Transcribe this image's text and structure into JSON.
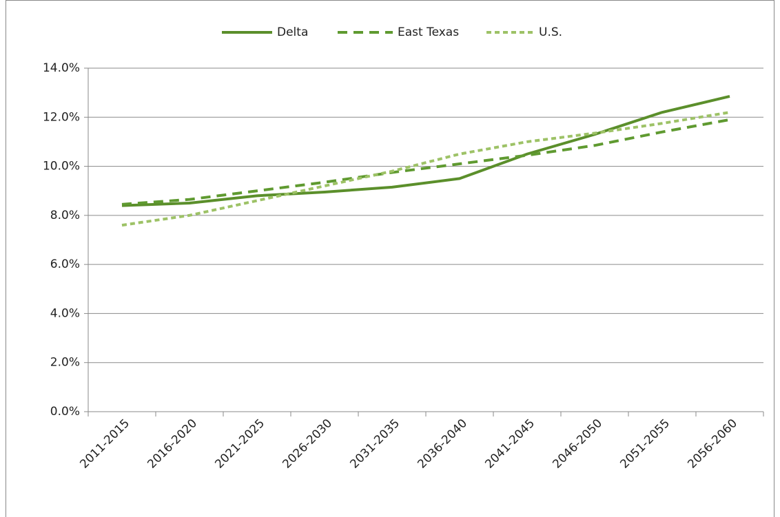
{
  "chart_data": {
    "type": "line",
    "categories": [
      "2011-2015",
      "2016-2020",
      "2021-2025",
      "2026-2030",
      "2031-2035",
      "2036-2040",
      "2041-2045",
      "2046-2050",
      "2051-2055",
      "2056-2060"
    ],
    "series": [
      {
        "name": "Delta",
        "color": "#5b8f2b",
        "dash": "solid",
        "values": [
          8.4,
          8.5,
          8.8,
          8.95,
          9.15,
          9.5,
          10.5,
          11.3,
          12.2,
          12.85
        ]
      },
      {
        "name": "East Texas",
        "color": "#5f9a30",
        "dash": "long",
        "values": [
          8.45,
          8.65,
          9.0,
          9.35,
          9.75,
          10.1,
          10.45,
          10.85,
          11.4,
          11.9
        ]
      },
      {
        "name": "U.S.",
        "color": "#9dc266",
        "dash": "short",
        "values": [
          7.6,
          8.0,
          8.6,
          9.2,
          9.8,
          10.5,
          11.0,
          11.35,
          11.75,
          12.2
        ]
      }
    ],
    "ylim": [
      0,
      14
    ],
    "yticks": [
      {
        "value": 0,
        "label": "0.0%"
      },
      {
        "value": 2,
        "label": "2.0%"
      },
      {
        "value": 4,
        "label": "4.0%"
      },
      {
        "value": 6,
        "label": "6.0%"
      },
      {
        "value": 8,
        "label": "8.0%"
      },
      {
        "value": 10,
        "label": "10.0%"
      },
      {
        "value": 12,
        "label": "12.0%"
      },
      {
        "value": 14,
        "label": "14.0%"
      }
    ],
    "grid": true,
    "legend": "top"
  }
}
